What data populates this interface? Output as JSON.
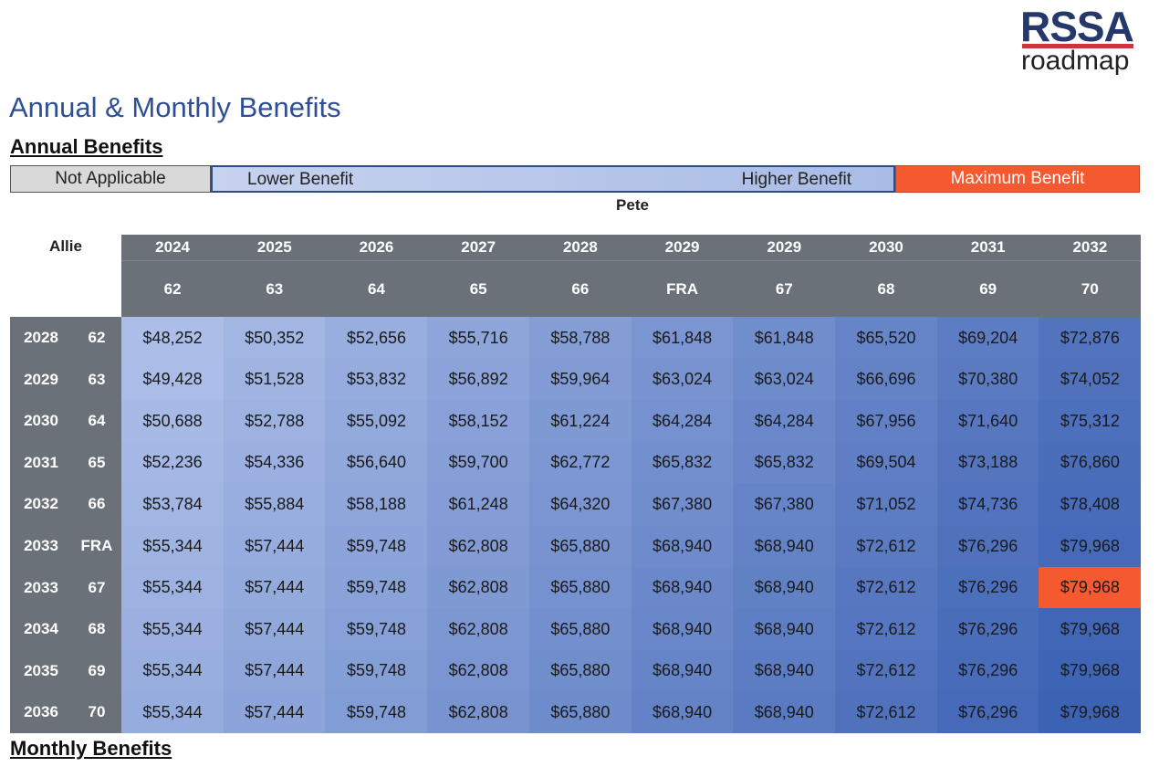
{
  "logo": {
    "brand": "RSSA",
    "tagline": "roadmap"
  },
  "header": {
    "title": "Annual & Monthly Benefits"
  },
  "sections": [
    "Annual Benefits",
    "Monthly Benefits"
  ],
  "legend": [
    "Not Applicable",
    "Lower Benefit",
    "Higher Benefit",
    "Maximum Benefit"
  ],
  "table": {
    "column_person": "Pete",
    "row_person": "Allie",
    "columns": [
      {
        "year": "2024",
        "age": "62"
      },
      {
        "year": "2025",
        "age": "63"
      },
      {
        "year": "2026",
        "age": "64"
      },
      {
        "year": "2027",
        "age": "65"
      },
      {
        "year": "2028",
        "age": "66"
      },
      {
        "year": "2029",
        "age": "FRA"
      },
      {
        "year": "2029",
        "age": "67"
      },
      {
        "year": "2030",
        "age": "68"
      },
      {
        "year": "2031",
        "age": "69"
      },
      {
        "year": "2032",
        "age": "70"
      }
    ],
    "rows": [
      {
        "year": "2028",
        "age": "62",
        "values": [
          "$48,252",
          "$50,352",
          "$52,656",
          "$55,716",
          "$58,788",
          "$61,848",
          "$61,848",
          "$65,520",
          "$69,204",
          "$72,876"
        ]
      },
      {
        "year": "2029",
        "age": "63",
        "values": [
          "$49,428",
          "$51,528",
          "$53,832",
          "$56,892",
          "$59,964",
          "$63,024",
          "$63,024",
          "$66,696",
          "$70,380",
          "$74,052"
        ]
      },
      {
        "year": "2030",
        "age": "64",
        "values": [
          "$50,688",
          "$52,788",
          "$55,092",
          "$58,152",
          "$61,224",
          "$64,284",
          "$64,284",
          "$67,956",
          "$71,640",
          "$75,312"
        ]
      },
      {
        "year": "2031",
        "age": "65",
        "values": [
          "$52,236",
          "$54,336",
          "$56,640",
          "$59,700",
          "$62,772",
          "$65,832",
          "$65,832",
          "$69,504",
          "$73,188",
          "$76,860"
        ]
      },
      {
        "year": "2032",
        "age": "66",
        "values": [
          "$53,784",
          "$55,884",
          "$58,188",
          "$61,248",
          "$64,320",
          "$67,380",
          "$67,380",
          "$71,052",
          "$74,736",
          "$78,408"
        ]
      },
      {
        "year": "2033",
        "age": "FRA",
        "values": [
          "$55,344",
          "$57,444",
          "$59,748",
          "$62,808",
          "$65,880",
          "$68,940",
          "$68,940",
          "$72,612",
          "$76,296",
          "$79,968"
        ]
      },
      {
        "year": "2033",
        "age": "67",
        "values": [
          "$55,344",
          "$57,444",
          "$59,748",
          "$62,808",
          "$65,880",
          "$68,940",
          "$68,940",
          "$72,612",
          "$76,296",
          "$79,968"
        ]
      },
      {
        "year": "2034",
        "age": "68",
        "values": [
          "$55,344",
          "$57,444",
          "$59,748",
          "$62,808",
          "$65,880",
          "$68,940",
          "$68,940",
          "$72,612",
          "$76,296",
          "$79,968"
        ]
      },
      {
        "year": "2035",
        "age": "69",
        "values": [
          "$55,344",
          "$57,444",
          "$59,748",
          "$62,808",
          "$65,880",
          "$68,940",
          "$68,940",
          "$72,612",
          "$76,296",
          "$79,968"
        ]
      },
      {
        "year": "2036",
        "age": "70",
        "values": [
          "$55,344",
          "$57,444",
          "$59,748",
          "$62,808",
          "$65,880",
          "$68,940",
          "$68,940",
          "$72,612",
          "$76,296",
          "$79,968"
        ]
      }
    ],
    "maximum_cell": {
      "row": 6,
      "column": 9
    }
  }
}
